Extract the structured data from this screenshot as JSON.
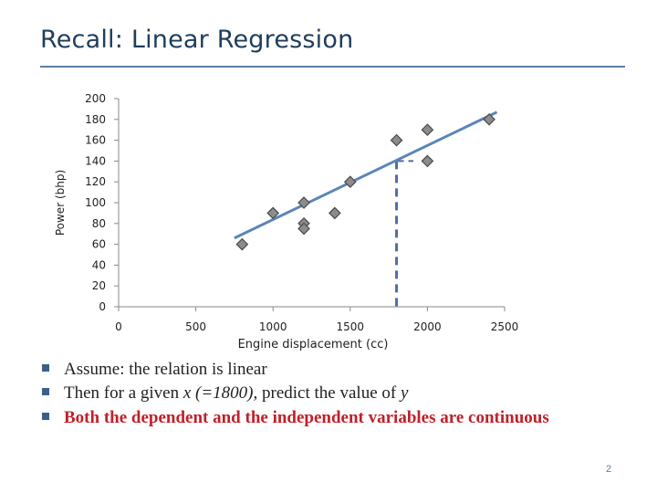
{
  "slide": {
    "title": "Recall: Linear Regression",
    "page_number": "2"
  },
  "bullets": [
    {
      "parts": [
        "Assume: the relation is linear"
      ]
    },
    {
      "parts": [
        "Then for a given ",
        "x (=1800),",
        " predict the value of ",
        "y"
      ]
    },
    {
      "parts": [
        "Both the dependent and the independent variables are continuous"
      ]
    }
  ],
  "chart_data": {
    "type": "scatter",
    "title": "",
    "xlabel": "Engine displacement (cc)",
    "ylabel": "Power (bhp)",
    "xlim": [
      0,
      2500
    ],
    "ylim": [
      0,
      200
    ],
    "xticks": [
      "0",
      "500",
      "1000",
      "1500",
      "2000",
      "2500"
    ],
    "yticks": [
      "0",
      "20",
      "40",
      "60",
      "80",
      "100",
      "120",
      "140",
      "160",
      "180",
      "200"
    ],
    "points": [
      {
        "x": 800,
        "y": 60
      },
      {
        "x": 1000,
        "y": 90
      },
      {
        "x": 1200,
        "y": 100
      },
      {
        "x": 1200,
        "y": 80
      },
      {
        "x": 1200,
        "y": 75
      },
      {
        "x": 1400,
        "y": 90
      },
      {
        "x": 1500,
        "y": 120
      },
      {
        "x": 1800,
        "y": 160
      },
      {
        "x": 2000,
        "y": 170
      },
      {
        "x": 2000,
        "y": 140
      },
      {
        "x": 2400,
        "y": 180
      }
    ],
    "regression_line": {
      "x": [
        750,
        2450
      ],
      "y": [
        66,
        187
      ]
    },
    "prediction": {
      "x": 1800,
      "y": 140
    },
    "colors": {
      "marker_fill": "#8c8c8c",
      "marker_stroke": "#4a4a4a",
      "line": "#5b85b8",
      "prediction": "#4f6ea0",
      "bullet_highlight": "#c0202a"
    }
  }
}
